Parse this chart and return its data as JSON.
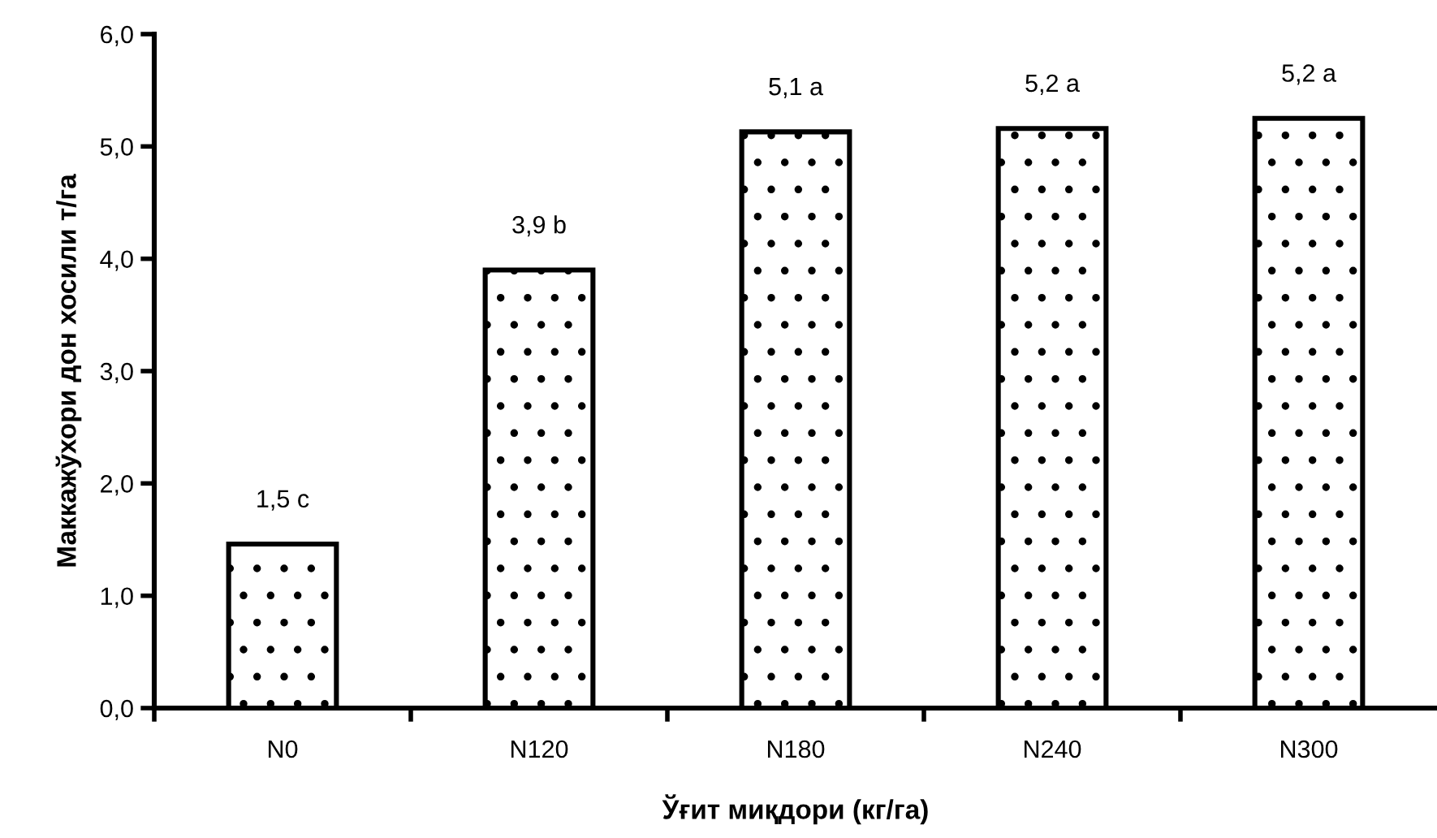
{
  "chart_data": {
    "type": "bar",
    "xlabel": "Ўғит миқдори (кг/га)",
    "ylabel": "Маккажўхори дон хосили т/га",
    "categories": [
      "N0",
      "N120",
      "N180",
      "N240",
      "N300"
    ],
    "values": [
      1.46,
      3.9,
      5.13,
      5.16,
      5.25
    ],
    "value_labels": [
      "1,5 c",
      "3,9 b",
      "5,1 a",
      "5,2 a",
      "5,2 a"
    ],
    "color": "#ffffff",
    "ylim": [
      0,
      6
    ],
    "yticks": [
      {
        "value": 0,
        "label": "0,0"
      },
      {
        "value": 1,
        "label": "1,0"
      },
      {
        "value": 2,
        "label": "2,0"
      },
      {
        "value": 3,
        "label": "3,0"
      },
      {
        "value": 4,
        "label": "4,0"
      },
      {
        "value": 5,
        "label": "5,0"
      },
      {
        "value": 6,
        "label": "6,0"
      }
    ],
    "grid": false,
    "legend": false
  }
}
